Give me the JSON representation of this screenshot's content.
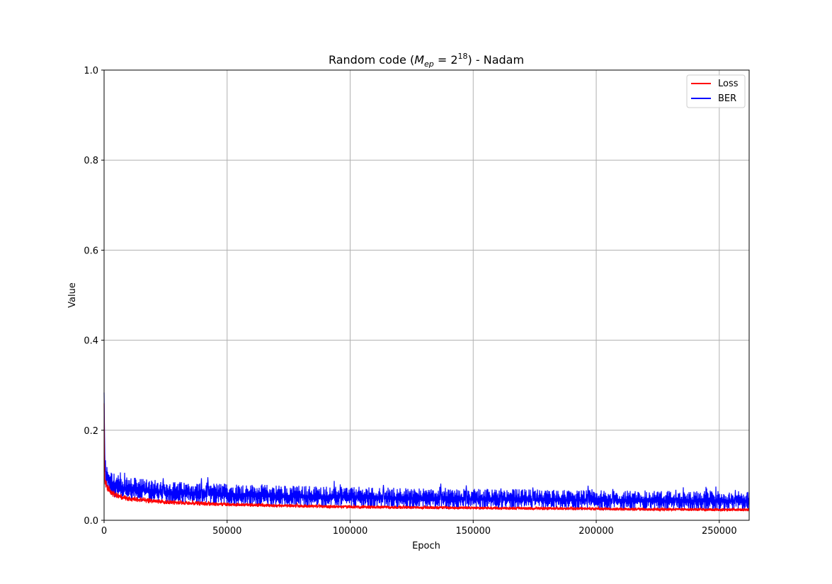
{
  "chart_data": {
    "type": "line",
    "title_main": "Random code (",
    "title_m": "M",
    "title_sub": "ep",
    "title_eq": " = 2",
    "title_sup": "18",
    "title_end": ") - Nadam",
    "xlabel": "Epoch",
    "ylabel": "Value",
    "xlim": [
      0,
      262144
    ],
    "ylim": [
      0,
      1.0
    ],
    "x_ticks": [
      0,
      50000,
      100000,
      150000,
      200000,
      250000
    ],
    "x_tick_labels": [
      "0",
      "50000",
      "100000",
      "150000",
      "200000",
      "250000"
    ],
    "y_ticks": [
      0,
      0.2,
      0.4,
      0.6,
      0.8,
      1.0
    ],
    "y_tick_labels": [
      "0.0",
      "0.2",
      "0.4",
      "0.6",
      "0.8",
      "1.0"
    ],
    "grid": true,
    "legend_position": "top-right",
    "series": [
      {
        "name": "Loss",
        "color": "#ff0000",
        "envelope_x": [
          0,
          200,
          500,
          1000,
          2000,
          3000,
          5000,
          8000,
          12000,
          20000,
          30000,
          50000,
          75000,
          100000,
          125000,
          150000,
          175000,
          200000,
          225000,
          250000,
          262144
        ],
        "envelope_low": [
          0.22,
          0.085,
          0.075,
          0.068,
          0.06,
          0.054,
          0.048,
          0.044,
          0.041,
          0.037,
          0.034,
          0.031,
          0.028,
          0.026,
          0.025,
          0.024,
          0.023,
          0.022,
          0.021,
          0.02,
          0.02
        ],
        "envelope_high": [
          0.27,
          0.105,
          0.095,
          0.088,
          0.078,
          0.07,
          0.062,
          0.057,
          0.053,
          0.048,
          0.044,
          0.04,
          0.036,
          0.034,
          0.032,
          0.031,
          0.03,
          0.029,
          0.028,
          0.027,
          0.027
        ]
      },
      {
        "name": "BER",
        "color": "#0000ff",
        "envelope_x": [
          0,
          200,
          500,
          1000,
          2000,
          3000,
          5000,
          8000,
          12000,
          20000,
          30000,
          50000,
          75000,
          100000,
          125000,
          150000,
          175000,
          200000,
          225000,
          250000,
          262144
        ],
        "envelope_low": [
          0.25,
          0.09,
          0.08,
          0.07,
          0.06,
          0.055,
          0.05,
          0.046,
          0.043,
          0.039,
          0.036,
          0.032,
          0.029,
          0.027,
          0.025,
          0.024,
          0.023,
          0.022,
          0.021,
          0.02,
          0.02
        ],
        "envelope_high": [
          0.29,
          0.165,
          0.14,
          0.125,
          0.115,
          0.108,
          0.102,
          0.098,
          0.095,
          0.09,
          0.086,
          0.082,
          0.078,
          0.075,
          0.072,
          0.07,
          0.069,
          0.067,
          0.066,
          0.065,
          0.065
        ]
      }
    ]
  }
}
